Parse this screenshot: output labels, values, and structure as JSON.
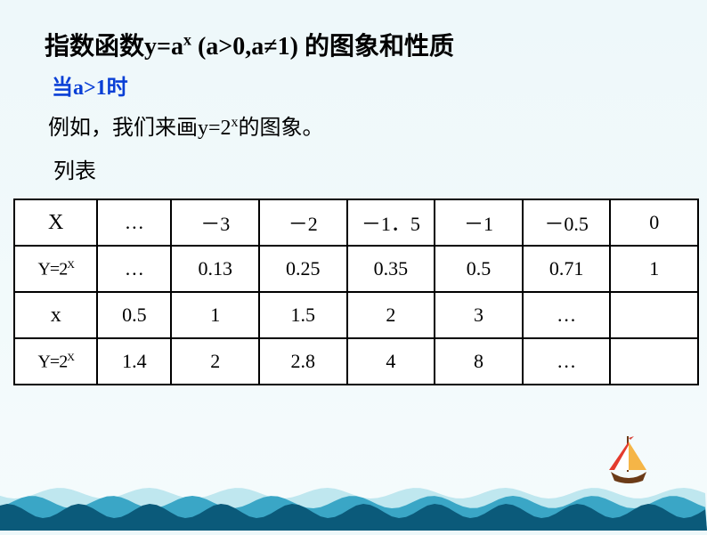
{
  "title_prefix": "指数函数y=a",
  "title_exp": "x",
  "title_cond": "  (a>0,a≠1)    的图象和性质",
  "subtitle": "当a>1时",
  "example_prefix": "例如，我们来画y=2",
  "example_exp": "x",
  "example_suffix": "的图象。",
  "list_label": "列表",
  "table": {
    "row1_hdr": "X",
    "row1": [
      "…",
      "－3",
      "－2",
      "－1．5",
      "－1",
      "－0.5",
      "0"
    ],
    "row2_hdr_a": "Y=2",
    "row2_hdr_b": "X",
    "row2": [
      "…",
      "0.13",
      "0.25",
      "0.35",
      "0.5",
      "0.71",
      "1"
    ],
    "row3_hdr": "x",
    "row3": [
      "0.5",
      "1",
      "1.5",
      "2",
      "3",
      "…",
      ""
    ],
    "row4_hdr_a": "Y=2",
    "row4_hdr_b": "X",
    "row4": [
      "1.4",
      "2",
      "2.8",
      "4",
      "8",
      "…",
      ""
    ]
  },
  "colors": {
    "wave_dark": "#0b5a7a",
    "wave_mid": "#3aa6c6",
    "wave_light": "#bfe7ef",
    "sail1": "#e43b2e",
    "sail2": "#ffffff",
    "sail3": "#f5b547",
    "hull": "#6b3b18",
    "flag": "#d8443b"
  }
}
